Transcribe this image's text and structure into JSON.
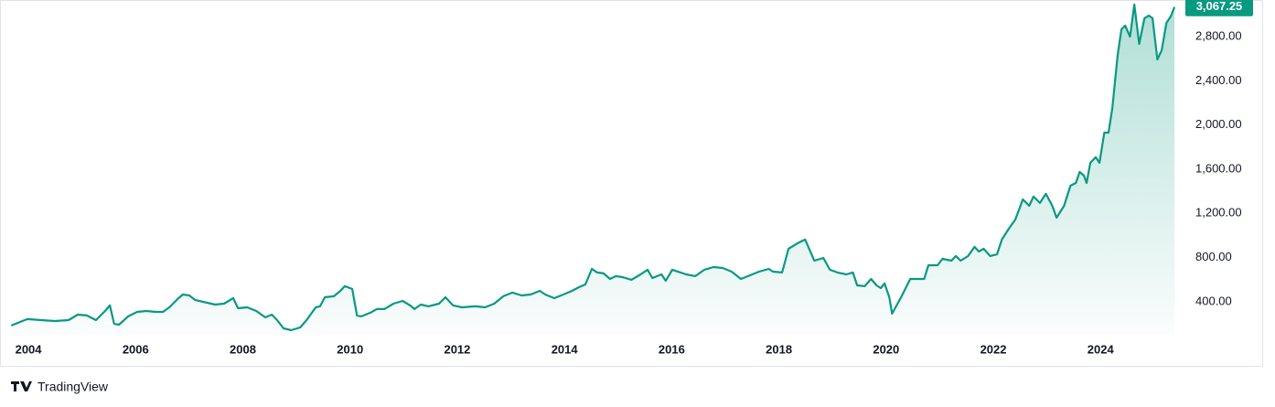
{
  "chart_data": {
    "type": "line",
    "x": [
      2003.68,
      2003.98,
      2004.24,
      2004.49,
      2004.75,
      2004.92,
      2005.09,
      2005.26,
      2005.43,
      2005.52,
      2005.6,
      2005.69,
      2005.86,
      2006.03,
      2006.2,
      2006.37,
      2006.51,
      2006.63,
      2006.8,
      2006.88,
      2007.0,
      2007.11,
      2007.26,
      2007.48,
      2007.65,
      2007.82,
      2007.91,
      2008.08,
      2008.25,
      2008.42,
      2008.54,
      2008.64,
      2008.76,
      2008.9,
      2009.07,
      2009.19,
      2009.36,
      2009.44,
      2009.53,
      2009.7,
      2009.82,
      2009.9,
      2010.04,
      2010.13,
      2010.21,
      2010.38,
      2010.5,
      2010.64,
      2010.81,
      2010.98,
      2011.12,
      2011.2,
      2011.32,
      2011.46,
      2011.66,
      2011.78,
      2011.92,
      2012.09,
      2012.34,
      2012.52,
      2012.69,
      2012.86,
      2013.03,
      2013.2,
      2013.37,
      2013.54,
      2013.64,
      2013.81,
      2013.98,
      2014.14,
      2014.27,
      2014.39,
      2014.51,
      2014.61,
      2014.73,
      2014.85,
      2014.96,
      2015.08,
      2015.25,
      2015.42,
      2015.55,
      2015.64,
      2015.81,
      2015.89,
      2016.01,
      2016.27,
      2016.44,
      2016.61,
      2016.78,
      2016.95,
      2017.12,
      2017.29,
      2017.46,
      2017.63,
      2017.81,
      2017.89,
      2018.06,
      2018.18,
      2018.35,
      2018.49,
      2018.66,
      2018.83,
      2018.95,
      2019.09,
      2019.26,
      2019.38,
      2019.46,
      2019.6,
      2019.72,
      2019.82,
      2019.9,
      2019.97,
      2020.06,
      2020.11,
      2020.28,
      2020.45,
      2020.71,
      2020.79,
      2020.96,
      2021.05,
      2021.22,
      2021.3,
      2021.39,
      2021.53,
      2021.65,
      2021.73,
      2021.82,
      2021.94,
      2022.07,
      2022.16,
      2022.29,
      2022.41,
      2022.55,
      2022.67,
      2022.75,
      2022.87,
      2022.98,
      2023.1,
      2023.18,
      2023.32,
      2023.44,
      2023.54,
      2023.61,
      2023.69,
      2023.74,
      2023.81,
      2023.91,
      2023.98,
      2024.07,
      2024.15,
      2024.22,
      2024.32,
      2024.39,
      2024.46,
      2024.55,
      2024.63,
      2024.72,
      2024.82,
      2024.9,
      2024.97,
      2025.06,
      2025.14,
      2025.23,
      2025.31,
      2025.38
    ],
    "series": [
      {
        "color": "#089981",
        "values": [
          185,
          243,
          234,
          226,
          234,
          284,
          276,
          234,
          317,
          367,
          201,
          193,
          268,
          309,
          317,
          309,
          309,
          350,
          433,
          466,
          458,
          417,
          400,
          375,
          383,
          433,
          342,
          350,
          317,
          259,
          284,
          234,
          160,
          143,
          168,
          234,
          350,
          359,
          441,
          450,
          499,
          541,
          516,
          276,
          268,
          301,
          334,
          334,
          383,
          408,
          367,
          334,
          375,
          359,
          383,
          441,
          367,
          350,
          359,
          350,
          383,
          450,
          483,
          458,
          466,
          499,
          466,
          433,
          466,
          499,
          532,
          557,
          698,
          665,
          657,
          607,
          632,
          623,
          599,
          648,
          690,
          615,
          648,
          590,
          690,
          648,
          632,
          690,
          714,
          706,
          673,
          607,
          640,
          673,
          698,
          673,
          665,
          880,
          930,
          963,
          772,
          797,
          690,
          665,
          648,
          665,
          549,
          541,
          607,
          549,
          524,
          566,
          441,
          292,
          441,
          607,
          607,
          731,
          731,
          789,
          772,
          814,
          772,
          814,
          897,
          855,
          880,
          814,
          830,
          963,
          1062,
          1145,
          1327,
          1269,
          1352,
          1294,
          1377,
          1269,
          1161,
          1269,
          1451,
          1476,
          1575,
          1542,
          1476,
          1658,
          1708,
          1658,
          1931,
          1931,
          2155,
          2635,
          2866,
          2899,
          2800,
          3090,
          2734,
          2966,
          2990,
          2966,
          2593,
          2676,
          2924,
          2982,
          3067.25
        ]
      }
    ],
    "last_value_label": "3,067.25",
    "xlim": [
      2003.47,
      2025.48
    ],
    "xticks": [
      2004,
      2006,
      2008,
      2010,
      2012,
      2014,
      2016,
      2018,
      2020,
      2022,
      2024
    ],
    "ylim": [
      110,
      3131
    ],
    "yticks": [
      {
        "value": 400,
        "label": "400.00"
      },
      {
        "value": 800,
        "label": "800.00"
      },
      {
        "value": 1200,
        "label": "1,200.00"
      },
      {
        "value": 1600,
        "label": "1,600.00"
      },
      {
        "value": 2000,
        "label": "2,000.00"
      },
      {
        "value": 2400,
        "label": "2,400.00"
      },
      {
        "value": 2800,
        "label": "2,800.00"
      }
    ],
    "logo_text": "TradingView"
  }
}
